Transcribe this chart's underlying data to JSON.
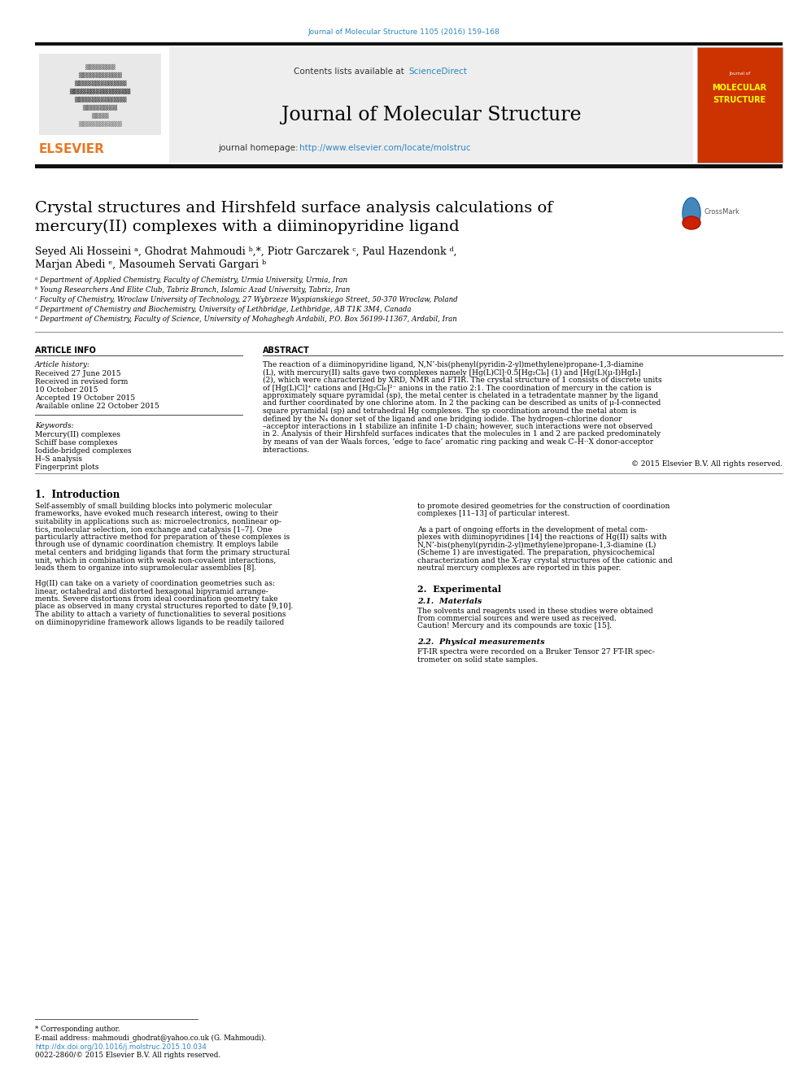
{
  "page_bg": "#ffffff",
  "header_journal_ref": "Journal of Molecular Structure 1105 (2016) 159–168",
  "header_journal_ref_color": "#2e86c1",
  "journal_title": "Journal of Molecular Structure",
  "journal_homepage_prefix": "journal homepage: ",
  "journal_homepage_url": "http://www.elsevier.com/locate/molstruc",
  "contents_available": "Contents lists available at ",
  "sciencedirect": "ScienceDirect",
  "sciencedirect_color": "#2e86c1",
  "header_bg": "#eeeeee",
  "thick_bar_color": "#111111",
  "article_title_line1": "Crystal structures and Hirshfeld surface analysis calculations of",
  "article_title_line2": "mercury(II) complexes with a diiminopyridine ligand",
  "authors_line1": "Seyed Ali Hosseini ᵃ, Ghodrat Mahmoudi ᵇ,*, Piotr Garczarek ᶜ, Paul Hazendonk ᵈ,",
  "authors_line2": "Marjan Abedi ᵉ, Masoumeh Servati Gargari ᵇ",
  "affiliations": [
    "ᵃ Department of Applied Chemistry, Faculty of Chemistry, Urmia University, Urmia, Iran",
    "ᵇ Young Researchers And Elite Club, Tabriz Branch, Islamic Azad University, Tabriz, Iran",
    "ᶜ Faculty of Chemistry, Wroclaw University of Technology, 27 Wybrzeze Wyspianskiego Street, 50-370 Wroclaw, Poland",
    "ᵈ Department of Chemistry and Biochemistry, University of Lethbridge, Lethbridge, AB T1K 3M4, Canada",
    "ᵉ Department of Chemistry, Faculty of Science, University of Mohaghegh Ardabili, P.O. Box 56199-11367, Ardabil, Iran"
  ],
  "article_info_title": "ARTICLE INFO",
  "article_history_label": "Article history:",
  "article_history": [
    "Received 27 June 2015",
    "Received in revised form",
    "10 October 2015",
    "Accepted 19 October 2015",
    "Available online 22 October 2015"
  ],
  "keywords_label": "Keywords:",
  "keywords": [
    "Mercury(II) complexes",
    "Schiff base complexes",
    "Iodide-bridged complexes",
    "H–S analysis",
    "Fingerprint plots"
  ],
  "abstract_title": "ABSTRACT",
  "abstract_lines": [
    "The reaction of a diiminopyridine ligand, N,N’-bis(phenyl(pyridin-2-yl)methylene)propane-1,3-diamine",
    "(L), with mercury(II) salts gave two complexes namely [Hg(L)Cl]·0.5[Hg₂Cl₆] (1) and [Hg(L)(μ-I)HgI₃]",
    "(2), which were characterized by XRD, NMR and FTIR. The crystal structure of 1 consists of discrete units",
    "of [Hg(L)Cl]⁺ cations and [Hg₂Cl₆]²⁻ anions in the ratio 2:1. The coordination of mercury in the cation is",
    "approximately square pyramidal (sp), the metal center is chelated in a tetradentate manner by the ligand",
    "and further coordinated by one chlorine atom. In 2 the packing can be described as units of μ-I-connected",
    "square pyramidal (sp) and tetrahedral Hg complexes. The sp coordination around the metal atom is",
    "defined by the N₄ donor set of the ligand and one bridging iodide. The hydrogen–chlorine donor",
    "–acceptor interactions in 1 stabilize an infinite 1-D chain; however, such interactions were not observed",
    "in 2. Analysis of their Hirshfeld surfaces indicates that the molecules in 1 and 2 are packed predominately",
    "by means of van der Waals forces, ‘edge to face’ aromatic ring packing and weak C–H··X donor-acceptor",
    "interactions."
  ],
  "copyright": "© 2015 Elsevier B.V. All rights reserved.",
  "intro_title": "1.  Introduction",
  "intro_col1_lines": [
    "Self-assembly of small building blocks into polymeric molecular",
    "frameworks, have evoked much research interest, owing to their",
    "suitability in applications such as: microelectronics, nonlinear op-",
    "tics, molecular selection, ion exchange and catalysis [1–7]. One",
    "particularly attractive method for preparation of these complexes is",
    "through use of dynamic coordination chemistry. It employs labile",
    "metal centers and bridging ligands that form the primary structural",
    "unit, which in combination with weak non-covalent interactions,",
    "leads them to organize into supramolecular assemblies [8].",
    "",
    "Hg(II) can take on a variety of coordination geometries such as:",
    "linear, octahedral and distorted hexagonal bipyramid arrange-",
    "ments. Severe distortions from ideal coordination geometry take",
    "place as observed in many crystal structures reported to date [9,10].",
    "The ability to attach a variety of functionalities to several positions",
    "on diiminopyridine framework allows ligands to be readily tailored"
  ],
  "intro_col2_lines": [
    "to promote desired geometries for the construction of coordination",
    "complexes [11–13] of particular interest.",
    "",
    "As a part of ongoing efforts in the development of metal com-",
    "plexes with diiminopyridines [14] the reactions of Hg(II) salts with",
    "N,N’-bis(phenyl(pyridin-2-yl)methylene)propane-1,3-diamine (L)",
    "(Scheme 1) are investigated. The preparation, physicochemical",
    "characterization and the X-ray crystal structures of the cationic and",
    "neutral mercury complexes are reported in this paper."
  ],
  "section2_title": "2.  Experimental",
  "section21_title": "2.1.  Materials",
  "section21_lines": [
    "The solvents and reagents used in these studies were obtained",
    "from commercial sources and were used as received.",
    "Caution! Mercury and its compounds are toxic [15]."
  ],
  "section22_title": "2.2.  Physical measurements",
  "section22_lines": [
    "FT-IR spectra were recorded on a Bruker Tensor 27 FT-IR spec-",
    "trometer on solid state samples."
  ],
  "footnote_star": "* Corresponding author.",
  "footnote_email": "E-mail address: mahmoudi_ghodrat@yahoo.co.uk (G. Mahmoudi).",
  "footnote_doi": "http://dx.doi.org/10.1016/j.molstruc.2015.10.034",
  "footnote_issn": "0022-2860/© 2015 Elsevier B.V. All rights reserved.",
  "link_color": "#2e86c1",
  "elsevier_color": "#e87722"
}
